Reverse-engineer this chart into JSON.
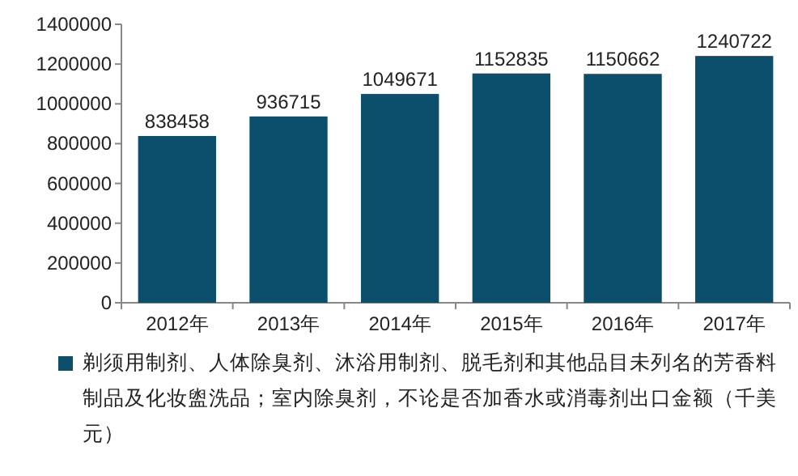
{
  "chart_data": {
    "type": "bar",
    "categories": [
      "2012年",
      "2013年",
      "2014年",
      "2015年",
      "2016年",
      "2017年"
    ],
    "series": [
      {
        "name": "剃须用制剂、人体除臭剂、沐浴用制剂、脱毛剂和其他品目未列名的芳香料制品及化妆盥洗品；室内除臭剂，不论是否加香水或消毒剂出口金额（千美元）",
        "color": "#0b4f6c",
        "values": [
          838458,
          936715,
          1049671,
          1152835,
          1150662,
          1240722
        ]
      }
    ],
    "ylim": [
      0,
      1400000
    ],
    "yticks": [
      0,
      200000,
      400000,
      600000,
      800000,
      1000000,
      1200000,
      1400000
    ],
    "data_labels": true,
    "legend": "bottom"
  }
}
